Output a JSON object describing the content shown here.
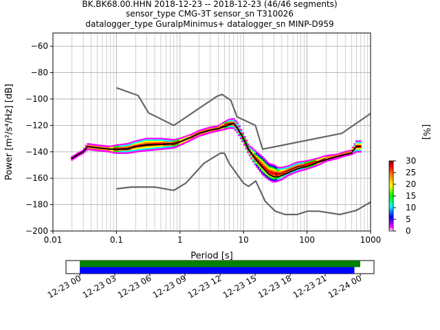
{
  "title_lines": [
    "BK.BK68.00.HHN   2018-12-23 -- 2018-12-23  (46/46 segments)",
    "sensor_type CMG-3T sensor_sn T310026",
    "datalogger_type GuralpMinimus+ datalogger_sn MINP-D959"
  ],
  "chart_data": {
    "type": "line",
    "xlabel": "Period [s]",
    "ylabel": "Power [m²/s⁴/Hz] [dB]",
    "x_scale": "log",
    "xlim": [
      0.01,
      1000
    ],
    "ylim": [
      -200,
      -50
    ],
    "x_ticks": [
      {
        "value": 0.01,
        "label": "0.01"
      },
      {
        "value": 0.1,
        "label": "0.1"
      },
      {
        "value": 1,
        "label": "1"
      },
      {
        "value": 10,
        "label": "10"
      },
      {
        "value": 100,
        "label": "100"
      },
      {
        "value": 1000,
        "label": "1000"
      }
    ],
    "y_ticks": [
      {
        "value": -60,
        "label": "−60"
      },
      {
        "value": -80,
        "label": "−80"
      },
      {
        "value": -100,
        "label": "−100"
      },
      {
        "value": -120,
        "label": "−120"
      },
      {
        "value": -140,
        "label": "−140"
      },
      {
        "value": -160,
        "label": "−160"
      },
      {
        "value": -180,
        "label": "−180"
      },
      {
        "value": -200,
        "label": "−200"
      }
    ],
    "grid": true,
    "series": [
      {
        "role": "new-high-noise-model",
        "color": "#666666",
        "x": [
          0.1,
          0.22,
          0.32,
          0.8,
          3.8,
          4.6,
          6.3,
          7.9,
          15.4,
          20,
          354,
          1000
        ],
        "y": [
          -91.5,
          -97.4,
          -110.5,
          -120,
          -98,
          -96.5,
          -101,
          -113.5,
          -120,
          -138,
          -126,
          -111
        ]
      },
      {
        "role": "new-low-noise-model",
        "color": "#666666",
        "x": [
          0.1,
          0.17,
          0.4,
          0.8,
          1.24,
          2.4,
          4.3,
          5,
          6,
          10,
          12,
          15.6,
          21.9,
          31.6,
          45,
          70,
          101,
          154,
          328,
          600,
          1000
        ],
        "y": [
          -168,
          -166.7,
          -166.7,
          -169.2,
          -163.7,
          -148.6,
          -141.1,
          -141.1,
          -149,
          -163.8,
          -166.2,
          -162.1,
          -177.5,
          -185,
          -187.5,
          -187.5,
          -185,
          -185,
          -187.5,
          -184.4,
          -178
        ]
      },
      {
        "role": "mode",
        "color": "#000000",
        "x": [
          0.02,
          0.025,
          0.03,
          0.035,
          0.05,
          0.08,
          0.1,
          0.15,
          0.2,
          0.3,
          0.5,
          0.8,
          1,
          1.5,
          2,
          3,
          4,
          5,
          6,
          7,
          8,
          10,
          12,
          15,
          20,
          25,
          30,
          35,
          40,
          50,
          70,
          100,
          150,
          200,
          300,
          400,
          500,
          600,
          700
        ],
        "y": [
          -145,
          -142,
          -140,
          -136,
          -137,
          -138,
          -138,
          -138,
          -136,
          -135,
          -134.5,
          -134,
          -132.5,
          -129,
          -126,
          -123.5,
          -122.5,
          -121,
          -119.5,
          -118.5,
          -122,
          -130,
          -138,
          -145,
          -152,
          -157,
          -159,
          -159,
          -158,
          -156,
          -153,
          -151,
          -148,
          -146,
          -143.5,
          -142,
          -141,
          -136,
          -136
        ]
      }
    ],
    "scatter_band": {
      "x": [
        0.02,
        0.025,
        0.03,
        0.035,
        0.05,
        0.08,
        0.1,
        0.15,
        0.2,
        0.3,
        0.5,
        0.8,
        1,
        1.5,
        2,
        3,
        4,
        5,
        6,
        7,
        8,
        10,
        12,
        15,
        20,
        25,
        30,
        35,
        40,
        50,
        70,
        100,
        150,
        200,
        300,
        400,
        500,
        600,
        700
      ],
      "y_low": [
        -146,
        -143,
        -141,
        -138,
        -139,
        -140,
        -141,
        -141,
        -140,
        -139,
        -138,
        -137,
        -135,
        -131,
        -128,
        -125.5,
        -124,
        -123,
        -122,
        -122,
        -125,
        -133,
        -141,
        -149,
        -157,
        -161,
        -163,
        -162,
        -161,
        -158,
        -155,
        -153,
        -150,
        -147,
        -145,
        -143,
        -142,
        -140,
        -140
      ],
      "y_high": [
        -144,
        -141,
        -139,
        -134,
        -135,
        -136,
        -135,
        -134,
        -132,
        -130,
        -130,
        -131,
        -130,
        -127,
        -124,
        -121.5,
        -120.5,
        -117.5,
        -115.5,
        -115,
        -118,
        -127,
        -135,
        -139,
        -144,
        -149,
        -150,
        -152,
        -152,
        -151,
        -148,
        -147,
        -145,
        -143,
        -142,
        -140,
        -139,
        -132,
        -132
      ]
    },
    "colorbar": {
      "label": "[%]",
      "range": [
        0,
        30
      ],
      "ticks": [
        {
          "value": 0,
          "label": "0"
        },
        {
          "value": 5,
          "label": "5"
        },
        {
          "value": 10,
          "label": "10"
        },
        {
          "value": 15,
          "label": "15"
        },
        {
          "value": 20,
          "label": "20"
        },
        {
          "value": 25,
          "label": "25"
        },
        {
          "value": 30,
          "label": "30"
        }
      ],
      "colors": [
        "#ffffff",
        "#ff00ff",
        "#0000ff",
        "#00ffff",
        "#00ff00",
        "#ffff00",
        "#ff8000",
        "#ff0000",
        "#800000"
      ]
    }
  },
  "timeline": {
    "range_hours": [
      0,
      25.5
    ],
    "bars": [
      {
        "color": "#008000",
        "start_hours": 0,
        "end_hours": 24
      },
      {
        "color": "#0000ff",
        "start_hours": 0,
        "end_hours": 23.5
      }
    ],
    "ticks": [
      {
        "hours": 0,
        "label": "12-23 00"
      },
      {
        "hours": 3,
        "label": "12-23 03"
      },
      {
        "hours": 6,
        "label": "12-23 06"
      },
      {
        "hours": 9,
        "label": "12-23 09"
      },
      {
        "hours": 12,
        "label": "12-23 12"
      },
      {
        "hours": 15,
        "label": "12-23 15"
      },
      {
        "hours": 18,
        "label": "12-23 18"
      },
      {
        "hours": 21,
        "label": "12-23 21"
      },
      {
        "hours": 24,
        "label": "12-24 00"
      }
    ]
  }
}
